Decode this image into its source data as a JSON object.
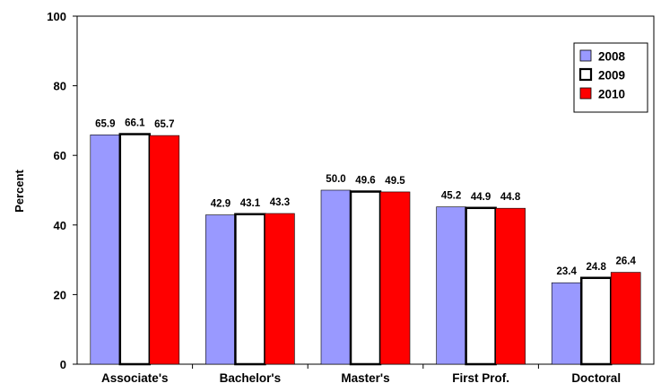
{
  "chart_data": {
    "type": "bar",
    "categories": [
      "Associate's",
      "Bachelor's",
      "Master's",
      "First Prof.",
      "Doctoral"
    ],
    "series": [
      {
        "name": "2008",
        "values": [
          65.9,
          42.9,
          50.0,
          45.2,
          23.4
        ],
        "color": "#9999ff"
      },
      {
        "name": "2009",
        "values": [
          66.1,
          43.1,
          49.6,
          44.9,
          24.8
        ],
        "color": "#ffffff"
      },
      {
        "name": "2010",
        "values": [
          65.7,
          43.3,
          49.5,
          44.8,
          26.4
        ],
        "color": "#ff0000"
      }
    ],
    "xlabel": "",
    "ylabel": "Percent",
    "ylim": [
      0,
      100
    ],
    "yticks": [
      0,
      20,
      40,
      60,
      80,
      100
    ],
    "grid": false,
    "legend_position": "top-right",
    "data_labels": true
  }
}
